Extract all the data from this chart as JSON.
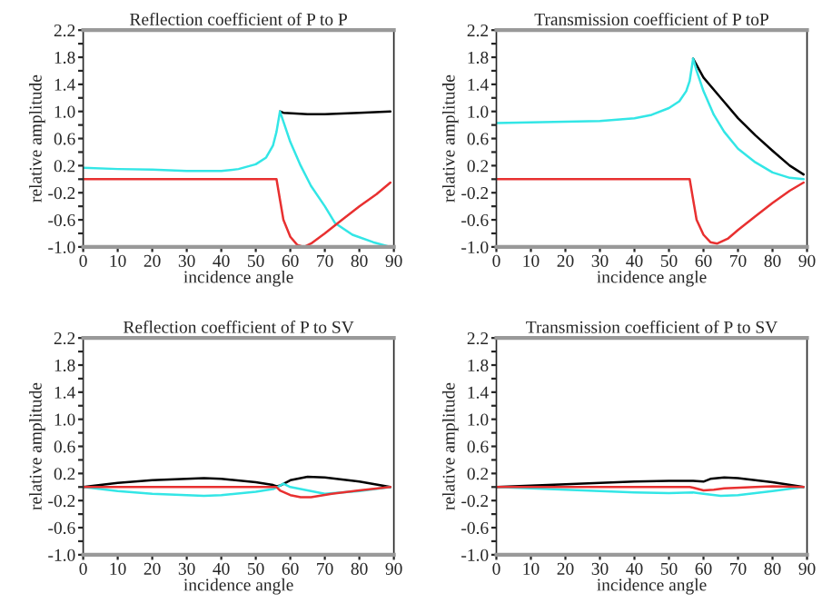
{
  "chart_data": [
    {
      "type": "line",
      "title": "Reflection coefficient of P to P",
      "xlabel": "incidence angle",
      "ylabel": "relative amplitude",
      "xlim": [
        0,
        90
      ],
      "ylim": [
        -1.0,
        2.2
      ],
      "xticks": [
        0,
        10,
        20,
        30,
        40,
        50,
        60,
        70,
        80,
        90
      ],
      "yticks": [
        {
          "value": -1.0,
          "label": "-1.0"
        },
        {
          "value": -0.8,
          "label": null
        },
        {
          "value": -0.6,
          "label": "-0.6"
        },
        {
          "value": -0.4,
          "label": null
        },
        {
          "value": -0.2,
          "label": "-0.2"
        },
        {
          "value": 0.0,
          "label": null
        },
        {
          "value": 0.2,
          "label": "0.2"
        },
        {
          "value": 0.4,
          "label": null
        },
        {
          "value": 0.6,
          "label": "0.6"
        },
        {
          "value": 0.8,
          "label": null
        },
        {
          "value": 1.0,
          "label": "1.0"
        },
        {
          "value": 1.2,
          "label": null
        },
        {
          "value": 1.4,
          "label": "1.4"
        },
        {
          "value": 1.6,
          "label": null
        },
        {
          "value": 1.8,
          "label": "1.8"
        },
        {
          "value": 2.0,
          "label": null
        },
        {
          "value": 2.2,
          "label": "2.2"
        }
      ],
      "grid": false,
      "marker": "none",
      "line_style": "solid",
      "series": [
        {
          "color": "#000000",
          "x": [
            57,
            58,
            65,
            70,
            80,
            89
          ],
          "values": [
            1.0,
            0.98,
            0.96,
            0.96,
            0.98,
            1.0
          ]
        },
        {
          "color": "#33e6e6",
          "x": [
            0,
            10,
            20,
            30,
            40,
            45,
            50,
            53,
            55,
            56,
            57,
            60,
            63,
            66,
            70,
            73,
            78,
            84,
            89
          ],
          "values": [
            0.17,
            0.15,
            0.14,
            0.12,
            0.12,
            0.15,
            0.22,
            0.32,
            0.5,
            0.7,
            1.0,
            0.55,
            0.2,
            -0.1,
            -0.4,
            -0.65,
            -0.82,
            -0.93,
            -1.0
          ]
        },
        {
          "color": "#e83030",
          "x": [
            0,
            56,
            57,
            58,
            60,
            62,
            64,
            66,
            70,
            75,
            80,
            85,
            89
          ],
          "values": [
            0.0,
            0.0,
            -0.3,
            -0.6,
            -0.85,
            -0.97,
            -1.0,
            -0.95,
            -0.8,
            -0.6,
            -0.4,
            -0.22,
            -0.05
          ]
        }
      ]
    },
    {
      "type": "line",
      "title": "Transmission coefficient of P toP",
      "xlabel": "incidence angle",
      "ylabel": "relative amplitude",
      "xlim": [
        0,
        90
      ],
      "ylim": [
        -1.0,
        2.2
      ],
      "xticks": [
        0,
        10,
        20,
        30,
        40,
        50,
        60,
        70,
        80,
        90
      ],
      "yticks": [
        {
          "value": -1.0,
          "label": "-1.0"
        },
        {
          "value": -0.8,
          "label": null
        },
        {
          "value": -0.6,
          "label": "-0.6"
        },
        {
          "value": -0.4,
          "label": null
        },
        {
          "value": -0.2,
          "label": "-0.2"
        },
        {
          "value": 0.0,
          "label": null
        },
        {
          "value": 0.2,
          "label": "0.2"
        },
        {
          "value": 0.4,
          "label": null
        },
        {
          "value": 0.6,
          "label": "0.6"
        },
        {
          "value": 0.8,
          "label": null
        },
        {
          "value": 1.0,
          "label": "1.0"
        },
        {
          "value": 1.2,
          "label": null
        },
        {
          "value": 1.4,
          "label": "1.4"
        },
        {
          "value": 1.6,
          "label": null
        },
        {
          "value": 1.8,
          "label": "1.8"
        },
        {
          "value": 2.0,
          "label": null
        },
        {
          "value": 2.2,
          "label": "2.2"
        }
      ],
      "grid": false,
      "marker": "none",
      "line_style": "solid",
      "series": [
        {
          "color": "#000000",
          "x": [
            57,
            60,
            65,
            70,
            75,
            80,
            85,
            89
          ],
          "values": [
            1.78,
            1.5,
            1.2,
            0.9,
            0.65,
            0.42,
            0.2,
            0.07
          ]
        },
        {
          "color": "#33e6e6",
          "x": [
            0,
            10,
            20,
            30,
            40,
            45,
            50,
            53,
            55,
            56,
            57,
            58,
            60,
            63,
            66,
            70,
            75,
            80,
            85,
            89
          ],
          "values": [
            0.83,
            0.84,
            0.85,
            0.86,
            0.9,
            0.95,
            1.05,
            1.15,
            1.3,
            1.45,
            1.78,
            1.6,
            1.3,
            0.95,
            0.7,
            0.45,
            0.25,
            0.1,
            0.02,
            0.0
          ]
        },
        {
          "color": "#e83030",
          "x": [
            0,
            56,
            57,
            58,
            60,
            62,
            64,
            67,
            70,
            75,
            80,
            85,
            89
          ],
          "values": [
            0.0,
            0.0,
            -0.3,
            -0.6,
            -0.82,
            -0.93,
            -0.95,
            -0.88,
            -0.75,
            -0.55,
            -0.35,
            -0.17,
            -0.05
          ]
        }
      ]
    },
    {
      "type": "line",
      "title": "Reflection coefficient of P to SV",
      "xlabel": "incidence angle",
      "ylabel": "relative amplitude",
      "xlim": [
        0,
        90
      ],
      "ylim": [
        -1.0,
        2.2
      ],
      "xticks": [
        0,
        10,
        20,
        30,
        40,
        50,
        60,
        70,
        80,
        90
      ],
      "yticks": [
        {
          "value": -1.0,
          "label": "-1.0"
        },
        {
          "value": -0.8,
          "label": null
        },
        {
          "value": -0.6,
          "label": "-0.6"
        },
        {
          "value": -0.4,
          "label": null
        },
        {
          "value": -0.2,
          "label": "-0.2"
        },
        {
          "value": 0.0,
          "label": null
        },
        {
          "value": 0.2,
          "label": "0.2"
        },
        {
          "value": 0.4,
          "label": null
        },
        {
          "value": 0.6,
          "label": "0.6"
        },
        {
          "value": 0.8,
          "label": null
        },
        {
          "value": 1.0,
          "label": "1.0"
        },
        {
          "value": 1.2,
          "label": null
        },
        {
          "value": 1.4,
          "label": "1.4"
        },
        {
          "value": 1.6,
          "label": null
        },
        {
          "value": 1.8,
          "label": "1.8"
        },
        {
          "value": 2.0,
          "label": null
        },
        {
          "value": 2.2,
          "label": "2.2"
        }
      ],
      "grid": false,
      "marker": "none",
      "line_style": "solid",
      "series": [
        {
          "color": "#000000",
          "x": [
            0,
            10,
            20,
            30,
            35,
            40,
            50,
            55,
            56,
            57,
            60,
            65,
            70,
            80,
            89
          ],
          "values": [
            0.0,
            0.06,
            0.1,
            0.12,
            0.13,
            0.12,
            0.07,
            0.03,
            0.01,
            0.02,
            0.1,
            0.15,
            0.14,
            0.08,
            0.0
          ]
        },
        {
          "color": "#33e6e6",
          "x": [
            0,
            10,
            20,
            30,
            35,
            40,
            50,
            55,
            57,
            58,
            60,
            65,
            70,
            80,
            89
          ],
          "values": [
            0.0,
            -0.06,
            -0.1,
            -0.12,
            -0.13,
            -0.12,
            -0.07,
            -0.03,
            0.02,
            0.05,
            0.0,
            -0.05,
            -0.1,
            -0.06,
            0.0
          ]
        },
        {
          "color": "#e83030",
          "x": [
            0,
            56,
            57,
            60,
            63,
            66,
            72,
            80,
            89
          ],
          "values": [
            0.0,
            0.0,
            -0.05,
            -0.12,
            -0.15,
            -0.15,
            -0.1,
            -0.05,
            0.0
          ]
        }
      ]
    },
    {
      "type": "line",
      "title": "Transmission coefficient of P to SV",
      "xlabel": "incidence angle",
      "ylabel": "relative amplitude",
      "xlim": [
        0,
        90
      ],
      "ylim": [
        -1.0,
        2.2
      ],
      "xticks": [
        0,
        10,
        20,
        30,
        40,
        50,
        60,
        70,
        80,
        90
      ],
      "yticks": [
        {
          "value": -1.0,
          "label": "-1.0"
        },
        {
          "value": -0.8,
          "label": null
        },
        {
          "value": -0.6,
          "label": "-0.6"
        },
        {
          "value": -0.4,
          "label": null
        },
        {
          "value": -0.2,
          "label": "-0.2"
        },
        {
          "value": 0.0,
          "label": null
        },
        {
          "value": 0.2,
          "label": "0.2"
        },
        {
          "value": 0.4,
          "label": null
        },
        {
          "value": 0.6,
          "label": "0.6"
        },
        {
          "value": 0.8,
          "label": null
        },
        {
          "value": 1.0,
          "label": "1.0"
        },
        {
          "value": 1.2,
          "label": null
        },
        {
          "value": 1.4,
          "label": "1.4"
        },
        {
          "value": 1.6,
          "label": null
        },
        {
          "value": 1.8,
          "label": "1.8"
        },
        {
          "value": 2.0,
          "label": null
        },
        {
          "value": 2.2,
          "label": "2.2"
        }
      ],
      "grid": false,
      "marker": "none",
      "line_style": "solid",
      "series": [
        {
          "color": "#000000",
          "x": [
            0,
            10,
            20,
            30,
            40,
            50,
            57,
            60,
            62,
            66,
            70,
            80,
            89
          ],
          "values": [
            0.0,
            0.02,
            0.04,
            0.06,
            0.08,
            0.09,
            0.09,
            0.08,
            0.12,
            0.14,
            0.13,
            0.07,
            0.0
          ]
        },
        {
          "color": "#33e6e6",
          "x": [
            0,
            10,
            20,
            30,
            40,
            50,
            57,
            60,
            65,
            70,
            80,
            89
          ],
          "values": [
            0.0,
            -0.02,
            -0.04,
            -0.06,
            -0.08,
            -0.09,
            -0.08,
            -0.1,
            -0.13,
            -0.12,
            -0.06,
            0.0
          ]
        },
        {
          "color": "#e83030",
          "x": [
            0,
            56,
            57,
            60,
            63,
            66,
            75,
            80,
            89
          ],
          "values": [
            0.0,
            0.0,
            -0.01,
            -0.05,
            -0.04,
            -0.02,
            0.0,
            0.01,
            0.0
          ]
        }
      ]
    }
  ]
}
